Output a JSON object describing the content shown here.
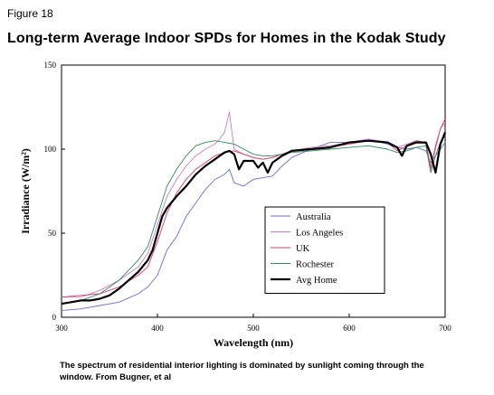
{
  "figure_label": "Figure 18",
  "caption": "The spectrum of residential interior lighting is dominated by sunlight coming through the window. From Bugner, et al",
  "chart_data": {
    "type": "line",
    "title": "Long-term Average Indoor SPDs for Homes in the Kodak Study",
    "xlabel": "Wavelength (nm)",
    "ylabel": "Irradiance (W/m²)",
    "xlim": [
      300,
      700
    ],
    "ylim": [
      0,
      150
    ],
    "xticks": [
      300,
      400,
      500,
      600,
      700
    ],
    "yticks": [
      0,
      50,
      100,
      150
    ],
    "grid": false,
    "legend_placement": "center-right",
    "series": [
      {
        "name": "Australia",
        "color": "#6b6bd6",
        "x": [
          300,
          320,
          340,
          360,
          380,
          390,
          400,
          410,
          420,
          430,
          440,
          450,
          460,
          470,
          475,
          480,
          490,
          500,
          510,
          520,
          530,
          540,
          560,
          580,
          600,
          620,
          640,
          650,
          660,
          670,
          680,
          685,
          690,
          695,
          700
        ],
        "y": [
          4,
          5,
          7,
          9,
          14,
          18,
          25,
          40,
          48,
          60,
          68,
          76,
          82,
          85,
          88,
          80,
          78,
          82,
          83,
          84,
          90,
          95,
          100,
          104,
          104,
          106,
          103,
          101,
          100,
          101,
          99,
          92,
          96,
          100,
          104
        ]
      },
      {
        "name": "Los Angeles",
        "color": "#d078d0",
        "x": [
          300,
          320,
          340,
          360,
          380,
          390,
          400,
          410,
          420,
          430,
          440,
          450,
          460,
          465,
          470,
          475,
          480,
          490,
          500,
          510,
          520,
          530,
          540,
          560,
          580,
          600,
          620,
          640,
          650,
          660,
          670,
          680,
          685,
          690,
          695,
          700
        ],
        "y": [
          12,
          12,
          16,
          22,
          30,
          38,
          55,
          72,
          82,
          90,
          96,
          100,
          103,
          106,
          110,
          122,
          100,
          97,
          95,
          94,
          95,
          97,
          99,
          101,
          102,
          104,
          106,
          104,
          101,
          103,
          105,
          103,
          88,
          100,
          112,
          116
        ]
      },
      {
        "name": "UK",
        "color": "#e03c64",
        "x": [
          300,
          320,
          340,
          360,
          380,
          390,
          400,
          410,
          420,
          430,
          440,
          450,
          460,
          470,
          480,
          490,
          500,
          510,
          520,
          530,
          540,
          560,
          580,
          600,
          620,
          640,
          650,
          660,
          670,
          680,
          685,
          690,
          695,
          700
        ],
        "y": [
          12,
          13,
          14,
          18,
          25,
          30,
          45,
          62,
          74,
          82,
          88,
          92,
          96,
          98,
          99,
          97,
          95,
          94,
          95,
          97,
          99,
          100,
          101,
          103,
          105,
          104,
          99,
          102,
          105,
          104,
          89,
          102,
          112,
          118
        ]
      },
      {
        "name": "Rochester",
        "color": "#2e8b57",
        "x": [
          300,
          320,
          340,
          360,
          380,
          390,
          400,
          410,
          420,
          430,
          440,
          450,
          460,
          470,
          480,
          490,
          500,
          510,
          520,
          530,
          540,
          560,
          580,
          600,
          620,
          640,
          650,
          660,
          670,
          680,
          685,
          690,
          695,
          700
        ],
        "y": [
          8,
          10,
          14,
          22,
          34,
          42,
          60,
          78,
          88,
          96,
          102,
          104,
          105,
          104,
          103,
          100,
          97,
          96,
          96,
          97,
          98,
          99,
          100,
          101,
          102,
          100,
          98,
          99,
          101,
          102,
          86,
          96,
          104,
          108
        ]
      },
      {
        "name": "Avg Home",
        "color": "#000000",
        "x": [
          300,
          310,
          320,
          330,
          340,
          350,
          360,
          370,
          380,
          390,
          395,
          400,
          405,
          410,
          420,
          430,
          440,
          450,
          460,
          465,
          470,
          475,
          480,
          485,
          490,
          500,
          505,
          510,
          515,
          520,
          530,
          540,
          560,
          580,
          600,
          620,
          640,
          650,
          655,
          660,
          670,
          680,
          685,
          690,
          695,
          700
        ],
        "y": [
          8,
          9,
          10,
          10,
          11,
          13,
          17,
          22,
          27,
          34,
          40,
          50,
          60,
          65,
          72,
          78,
          85,
          90,
          94,
          96,
          98,
          99,
          97,
          88,
          93,
          93,
          89,
          92,
          86,
          92,
          96,
          99,
          100,
          101,
          104,
          105,
          104,
          101,
          96,
          102,
          104,
          104,
          97,
          86,
          103,
          110
        ]
      }
    ]
  }
}
